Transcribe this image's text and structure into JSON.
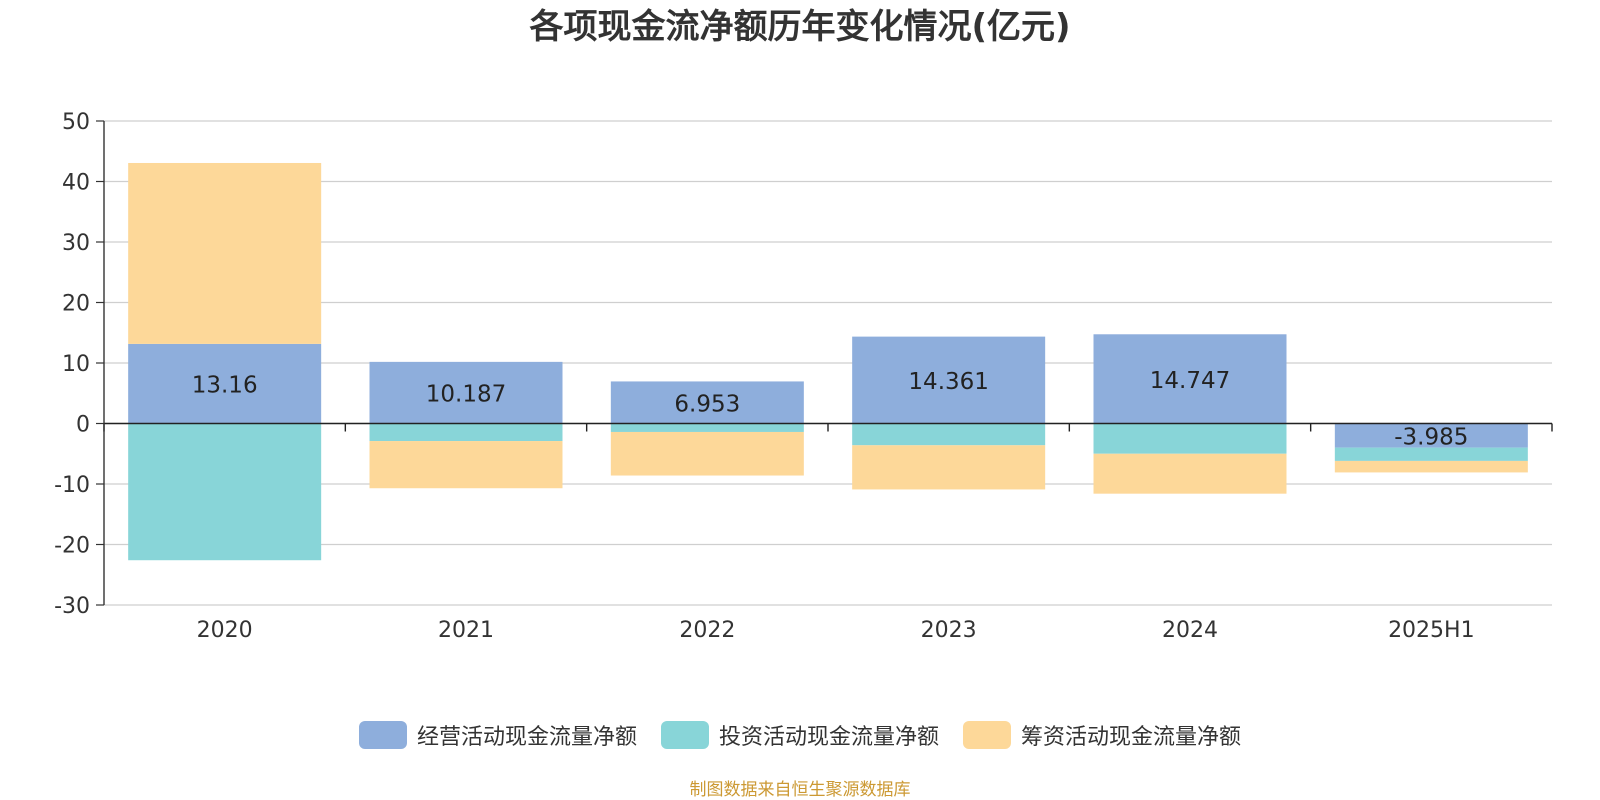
{
  "chart_data": {
    "type": "bar",
    "stacked": true,
    "title": "各项现金流净额历年变化情况(亿元)",
    "xlabel": "",
    "ylabel": "",
    "ylim": [
      -30,
      50
    ],
    "yticks": [
      50,
      40,
      30,
      20,
      10,
      0,
      -10,
      -20,
      -30
    ],
    "grid": true,
    "legend_position": "bottom",
    "categories": [
      "2020",
      "2021",
      "2022",
      "2023",
      "2024",
      "2025H1"
    ],
    "series": [
      {
        "name": "经营活动现金流量净额",
        "color": "#8eaedc",
        "values": [
          13.16,
          10.187,
          6.953,
          14.361,
          14.747,
          -3.985
        ],
        "labels": [
          "13.16",
          "10.187",
          "6.953",
          "14.361",
          "14.747",
          "-3.985"
        ]
      },
      {
        "name": "投资活动现金流量净额",
        "color": "#88d5d8",
        "values": [
          -22.6,
          -2.9,
          -1.4,
          -3.6,
          -5.0,
          -2.2
        ]
      },
      {
        "name": "筹资活动现金流量净额",
        "color": "#fdd899",
        "values": [
          29.9,
          -7.8,
          -7.2,
          -7.3,
          -6.6,
          -1.9
        ]
      }
    ]
  },
  "footer": {
    "source": "制图数据来自恒生聚源数据库"
  }
}
